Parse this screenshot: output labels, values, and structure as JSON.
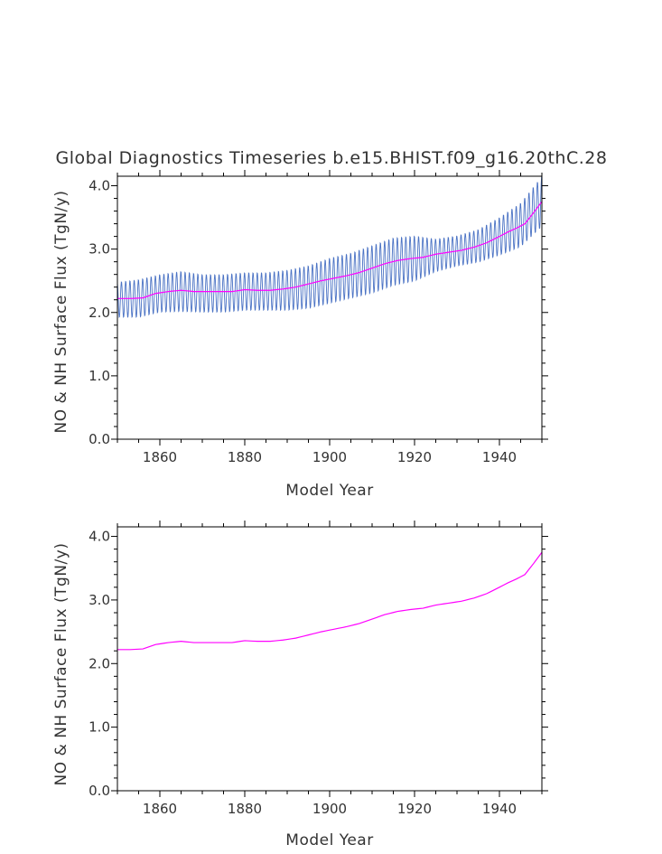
{
  "chart_data": [
    {
      "id": "top",
      "type": "line",
      "title": "Global Diagnostics Timeseries b.e15.BHIST.f09_g16.20thC.28",
      "xlabel": "Model Year",
      "ylabel": "NO & NH Surface Flux (TgN/y)",
      "xlim": [
        1850,
        1950
      ],
      "ylim": [
        0.0,
        4.15
      ],
      "xticks": [
        1860,
        1880,
        1900,
        1920,
        1940
      ],
      "xtick_labels": [
        "1860",
        "1880",
        "1900",
        "1920",
        "1940"
      ],
      "yticks": [
        0.0,
        1.0,
        2.0,
        3.0,
        4.0
      ],
      "ytick_labels": [
        "0.0",
        "1.0",
        "2.0",
        "3.0",
        "4.0"
      ],
      "series": [
        {
          "kind": "monthly",
          "color": "#4a72c4",
          "x": [
            1850,
            1855,
            1860,
            1865,
            1870,
            1875,
            1880,
            1885,
            1890,
            1895,
            1900,
            1905,
            1910,
            1915,
            1920,
            1925,
            1930,
            1935,
            1940,
            1945,
            1950
          ],
          "annual_mean": [
            2.2,
            2.22,
            2.3,
            2.33,
            2.3,
            2.3,
            2.33,
            2.33,
            2.35,
            2.4,
            2.5,
            2.58,
            2.68,
            2.8,
            2.85,
            2.9,
            2.97,
            3.05,
            3.2,
            3.38,
            3.75
          ],
          "seasonal_amplitude": [
            0.28,
            0.3,
            0.3,
            0.32,
            0.3,
            0.3,
            0.3,
            0.3,
            0.32,
            0.34,
            0.36,
            0.36,
            0.38,
            0.38,
            0.36,
            0.26,
            0.24,
            0.26,
            0.3,
            0.35,
            0.4
          ]
        },
        {
          "kind": "annual",
          "color": "#ff00ff",
          "x": [
            1850,
            1853,
            1856,
            1859,
            1862,
            1865,
            1868,
            1871,
            1874,
            1877,
            1880,
            1883,
            1886,
            1889,
            1892,
            1895,
            1898,
            1901,
            1904,
            1907,
            1910,
            1913,
            1916,
            1919,
            1922,
            1925,
            1928,
            1931,
            1934,
            1937,
            1940,
            1942,
            1944,
            1946,
            1948,
            1950
          ],
          "values": [
            2.22,
            2.22,
            2.23,
            2.3,
            2.33,
            2.35,
            2.33,
            2.33,
            2.33,
            2.33,
            2.36,
            2.35,
            2.35,
            2.37,
            2.4,
            2.45,
            2.5,
            2.54,
            2.58,
            2.63,
            2.7,
            2.77,
            2.82,
            2.85,
            2.87,
            2.92,
            2.95,
            2.98,
            3.03,
            3.1,
            3.2,
            3.27,
            3.33,
            3.4,
            3.57,
            3.75
          ]
        }
      ]
    },
    {
      "id": "bottom",
      "type": "line",
      "xlabel": "Model Year",
      "ylabel": "NO & NH Surface Flux (TgN/y)",
      "xlim": [
        1850,
        1950
      ],
      "ylim": [
        0.0,
        4.15
      ],
      "xticks": [
        1860,
        1880,
        1900,
        1920,
        1940
      ],
      "xtick_labels": [
        "1860",
        "1880",
        "1900",
        "1920",
        "1940"
      ],
      "yticks": [
        0.0,
        1.0,
        2.0,
        3.0,
        4.0
      ],
      "ytick_labels": [
        "0.0",
        "1.0",
        "2.0",
        "3.0",
        "4.0"
      ],
      "series": [
        {
          "kind": "annual",
          "color": "#ff00ff",
          "x": [
            1850,
            1853,
            1856,
            1859,
            1862,
            1865,
            1868,
            1871,
            1874,
            1877,
            1880,
            1883,
            1886,
            1889,
            1892,
            1895,
            1898,
            1901,
            1904,
            1907,
            1910,
            1913,
            1916,
            1919,
            1922,
            1925,
            1928,
            1931,
            1934,
            1937,
            1940,
            1942,
            1944,
            1946,
            1948,
            1950
          ],
          "values": [
            2.22,
            2.22,
            2.23,
            2.3,
            2.33,
            2.35,
            2.33,
            2.33,
            2.33,
            2.33,
            2.36,
            2.35,
            2.35,
            2.37,
            2.4,
            2.45,
            2.5,
            2.54,
            2.58,
            2.63,
            2.7,
            2.77,
            2.82,
            2.85,
            2.87,
            2.92,
            2.95,
            2.98,
            3.03,
            3.1,
            3.2,
            3.27,
            3.33,
            3.4,
            3.57,
            3.75
          ]
        }
      ]
    }
  ]
}
